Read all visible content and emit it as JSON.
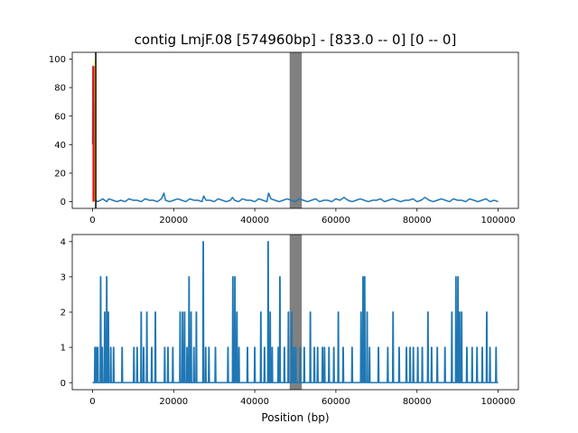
{
  "chart_data": {
    "type": "line",
    "title": "contig LmjF.08 [574960bp] - [833.0 -- 0] [0 -- 0]",
    "xlabel": "Position (bp)",
    "colors": {
      "series": "#1f77b4",
      "band": "#808080",
      "marker_red": "#ff0000",
      "marker_yellow": "#ffff00",
      "axis": "#000000"
    },
    "shaded_region": {
      "x_start": 48600,
      "x_end": 51600,
      "color": "#808080"
    },
    "panels": [
      {
        "name": "top",
        "xlim": [
          -5000,
          105000
        ],
        "ylim": [
          -4.7,
          104.7
        ],
        "xticks": [
          0,
          20000,
          40000,
          60000,
          80000,
          100000
        ],
        "xtick_labels": [
          "0",
          "20000",
          "40000",
          "60000",
          "80000",
          "100000"
        ],
        "yticks": [
          0,
          20,
          40,
          60,
          80,
          100
        ],
        "ytick_labels": [
          "0",
          "20",
          "40",
          "60",
          "80",
          "100"
        ],
        "markers": [
          {
            "x_start": 0,
            "x_end": 500,
            "y_start": 0,
            "y_end": 95,
            "color": "#ff0000"
          },
          {
            "x_start": 500,
            "x_end": 800,
            "y_start": 0,
            "y_end": 100,
            "color": "#ffff00"
          }
        ],
        "series": [
          {
            "name": "coverage-top",
            "x": [
              0,
              100,
              200,
              300,
              400,
              500,
              600,
              700,
              800,
              1200,
              2000,
              2500,
              3000,
              3500,
              4000,
              5000,
              6000,
              7000,
              8000,
              9000,
              10000,
              11000,
              12000,
              13000,
              14000,
              15000,
              16000,
              17000,
              17600,
              18000,
              19000,
              20000,
              21000,
              22000,
              23000,
              24000,
              25000,
              26000,
              27000,
              27400,
              28000,
              29000,
              30000,
              31000,
              32000,
              33000,
              34000,
              34500,
              35000,
              36000,
              37000,
              38000,
              39000,
              40000,
              41000,
              42000,
              43000,
              43400,
              44000,
              45000,
              46000,
              47000,
              48000,
              49000,
              50000,
              51000,
              52000,
              53000,
              54000,
              55000,
              56000,
              57000,
              58000,
              59000,
              60000,
              61000,
              62000,
              63000,
              64000,
              65000,
              66000,
              67000,
              68000,
              69000,
              70000,
              71000,
              72000,
              73000,
              74000,
              75000,
              76000,
              77000,
              78000,
              79000,
              80000,
              81000,
              82000,
              83000,
              84000,
              85000,
              86000,
              87000,
              88000,
              89000,
              90000,
              91000,
              92000,
              93000,
              94000,
              95000,
              96000,
              97000,
              98000,
              99000,
              100000
            ],
            "y": [
              40,
              95,
              60,
              45,
              70,
              10,
              5,
              2,
              1,
              0,
              1,
              2,
              1,
              0,
              2,
              1,
              0,
              1,
              0,
              2,
              1,
              1,
              0,
              2,
              1,
              1,
              0,
              2,
              6,
              1,
              0,
              1,
              2,
              1,
              0,
              2,
              1,
              1,
              0,
              4,
              1,
              1,
              0,
              2,
              1,
              0,
              1,
              3,
              1,
              0,
              2,
              1,
              1,
              0,
              2,
              1,
              0,
              6,
              2,
              1,
              0,
              1,
              2,
              1,
              0,
              2,
              1,
              0,
              1,
              2,
              0,
              1,
              1,
              0,
              2,
              1,
              3,
              1,
              0,
              1,
              2,
              1,
              0,
              1,
              1,
              2,
              0,
              1,
              2,
              1,
              0,
              1,
              1,
              2,
              0,
              1,
              3,
              1,
              0,
              1,
              2,
              1,
              0,
              2,
              1,
              1,
              0,
              2,
              1,
              0,
              1,
              2,
              0,
              1,
              0
            ]
          }
        ]
      },
      {
        "name": "bottom",
        "xlim": [
          -5000,
          105000
        ],
        "ylim": [
          -0.2,
          4.2
        ],
        "xticks": [
          0,
          20000,
          40000,
          60000,
          80000,
          100000
        ],
        "xtick_labels": [
          "0",
          "20000",
          "40000",
          "60000",
          "80000",
          "100000"
        ],
        "yticks": [
          0,
          1,
          2,
          3,
          4
        ],
        "ytick_labels": [
          "0",
          "1",
          "2",
          "3",
          "4"
        ],
        "series": [
          {
            "name": "coverage-bottom",
            "spikes": [
              [
                600,
                1
              ],
              [
                900,
                1
              ],
              [
                1300,
                1
              ],
              [
                2000,
                3
              ],
              [
                2400,
                1
              ],
              [
                3000,
                2
              ],
              [
                3500,
                3
              ],
              [
                3900,
                2
              ],
              [
                4500,
                1
              ],
              [
                5200,
                1
              ],
              [
                7300,
                1
              ],
              [
                10200,
                1
              ],
              [
                11000,
                1
              ],
              [
                12000,
                2
              ],
              [
                12600,
                1
              ],
              [
                13400,
                2
              ],
              [
                14600,
                1
              ],
              [
                15500,
                2
              ],
              [
                17800,
                1
              ],
              [
                18600,
                1
              ],
              [
                19800,
                1
              ],
              [
                21600,
                2
              ],
              [
                22200,
                2
              ],
              [
                22700,
                2
              ],
              [
                23300,
                1
              ],
              [
                23800,
                3
              ],
              [
                24300,
                2
              ],
              [
                25000,
                1
              ],
              [
                25600,
                2
              ],
              [
                27300,
                4
              ],
              [
                27900,
                1
              ],
              [
                28700,
                1
              ],
              [
                30300,
                1
              ],
              [
                33400,
                1
              ],
              [
                34600,
                3
              ],
              [
                35100,
                3
              ],
              [
                35600,
                2
              ],
              [
                36100,
                1
              ],
              [
                38200,
                1
              ],
              [
                40000,
                1
              ],
              [
                41500,
                2
              ],
              [
                42400,
                1
              ],
              [
                43300,
                4
              ],
              [
                43800,
                2
              ],
              [
                44300,
                1
              ],
              [
                45800,
                1
              ],
              [
                46200,
                3
              ],
              [
                47300,
                1
              ],
              [
                48300,
                2
              ],
              [
                49100,
                2
              ],
              [
                49600,
                1
              ],
              [
                50100,
                1
              ],
              [
                51200,
                1
              ],
              [
                52200,
                1
              ],
              [
                53700,
                2
              ],
              [
                54700,
                1
              ],
              [
                55500,
                1
              ],
              [
                56700,
                1
              ],
              [
                57200,
                1
              ],
              [
                58300,
                1
              ],
              [
                59500,
                1
              ],
              [
                60600,
                2
              ],
              [
                61800,
                1
              ],
              [
                64000,
                1
              ],
              [
                66200,
                2
              ],
              [
                66700,
                3
              ],
              [
                67100,
                3
              ],
              [
                67700,
                2
              ],
              [
                68300,
                1
              ],
              [
                70500,
                1
              ],
              [
                72800,
                1
              ],
              [
                74100,
                2
              ],
              [
                75600,
                1
              ],
              [
                77400,
                1
              ],
              [
                78300,
                1
              ],
              [
                79100,
                1
              ],
              [
                80200,
                1
              ],
              [
                81300,
                1
              ],
              [
                82700,
                2
              ],
              [
                83600,
                1
              ],
              [
                85000,
                1
              ],
              [
                86900,
                1
              ],
              [
                88600,
                2
              ],
              [
                89600,
                3
              ],
              [
                90100,
                3
              ],
              [
                90500,
                2
              ],
              [
                91000,
                2
              ],
              [
                92300,
                1
              ],
              [
                93600,
                1
              ],
              [
                94800,
                1
              ],
              [
                96100,
                1
              ],
              [
                97200,
                2
              ],
              [
                98000,
                1
              ],
              [
                99500,
                1
              ]
            ]
          }
        ]
      }
    ]
  }
}
